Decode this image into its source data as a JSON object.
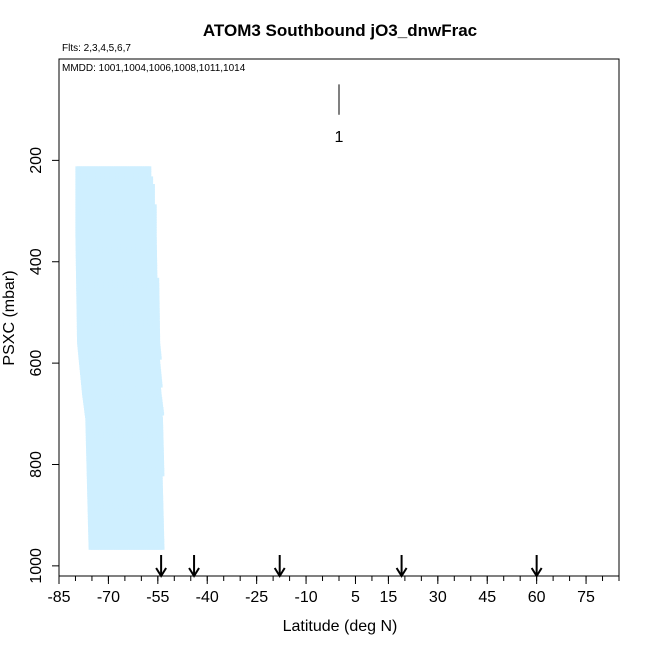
{
  "chart_data": {
    "type": "scatter",
    "title": "ATOM3 Southbound jO3_dnwFrac",
    "flights_note": "Flts: 2,3,4,5,6,7",
    "dates_note": "MMDD: 1001,1004,1006,1008,1011,1014",
    "xlabel": "Latitude (deg N)",
    "ylabel": "PSXC (mbar)",
    "xlim": [
      -85,
      85
    ],
    "ylim": [
      1020,
      0
    ],
    "y_reversed": true,
    "x_ticks": [
      -85,
      -70,
      -55,
      -40,
      -25,
      -10,
      5,
      15,
      30,
      45,
      60,
      75
    ],
    "x_tick_labels": [
      "-85",
      "-70",
      "-55",
      "-40",
      "-25",
      "-10",
      "5",
      "15",
      "30",
      "45",
      "60",
      "75"
    ],
    "y_ticks": [
      200,
      400,
      600,
      800,
      1000
    ],
    "y_tick_labels": [
      "200",
      "400",
      "600",
      "800",
      "1000"
    ],
    "point_color": "#cfefff",
    "data_region": {
      "lat_min": -79.5,
      "lat_max": -53.5,
      "p_top": 215,
      "p_bottom": 965,
      "profile_edges": [
        {
          "p": 215,
          "lat_min": -79.5,
          "lat_max": -57.5
        },
        {
          "p": 260,
          "lat_min": -79.5,
          "lat_max": -56.0
        },
        {
          "p": 350,
          "lat_min": -79.5,
          "lat_max": -55.5
        },
        {
          "p": 560,
          "lat_min": -79.0,
          "lat_max": -54.5
        },
        {
          "p": 660,
          "lat_min": -77.5,
          "lat_max": -54.0
        },
        {
          "p": 710,
          "lat_min": -76.5,
          "lat_max": -53.5
        },
        {
          "p": 965,
          "lat_min": -75.5,
          "lat_max": -53.5
        }
      ]
    },
    "scale_marker": {
      "lat": 0,
      "p_top": 50,
      "p_bottom": 110,
      "label": "1"
    },
    "arrows": [
      -54,
      -44,
      -18,
      19,
      60
    ]
  }
}
